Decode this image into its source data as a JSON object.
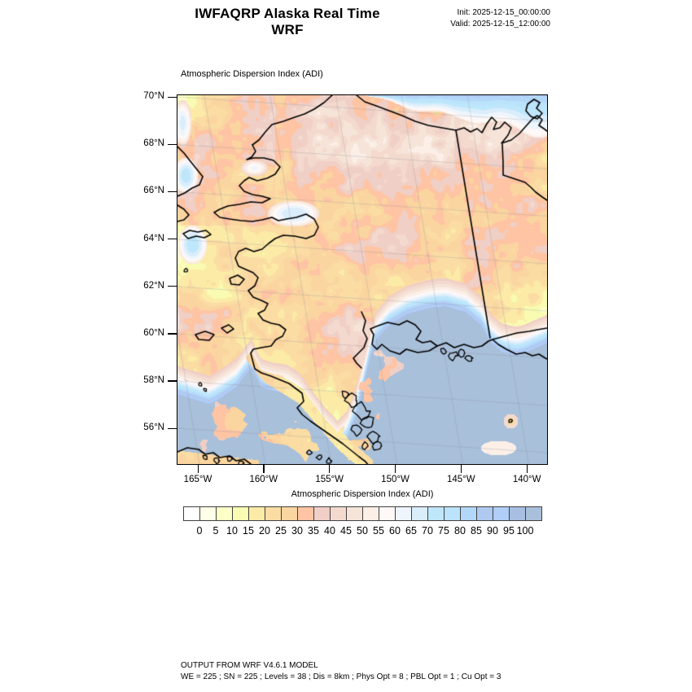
{
  "header": {
    "title": "IWFAQRP Alaska Real Time WRF",
    "init_label": "Init: 2025-12-15_00:00:00",
    "valid_label": "Valid: 2025-12-15_12:00:00"
  },
  "map": {
    "field_title": "Atmospheric Dispersion Index   (ADI)",
    "lat_tick_labels": [
      "70°N",
      "68°N",
      "66°N",
      "64°N",
      "62°N",
      "60°N",
      "58°N",
      "56°N"
    ],
    "lon_tick_labels": [
      "165°W",
      "160°W",
      "155°W",
      "150°W",
      "145°W",
      "140°W"
    ]
  },
  "colorbar": {
    "label": "Atmospheric Dispersion Index  (ADI)",
    "tick_values": [
      "0",
      "5",
      "10",
      "15",
      "20",
      "25",
      "30",
      "35",
      "40",
      "45",
      "50",
      "55",
      "60",
      "65",
      "70",
      "75",
      "80",
      "85",
      "90",
      "95",
      "100"
    ],
    "colors": [
      "#FFFFFF",
      "#FEFFE6",
      "#FDFFC8",
      "#F8FBB1",
      "#FCEBA7",
      "#FBDDA4",
      "#FBD5A0",
      "#FEC4A3",
      "#F0CFC6",
      "#F4DACE",
      "#F7E4D8",
      "#FBEFE8",
      "#FEF8F7",
      "#EFF5FD",
      "#DAEDFB",
      "#BFE7FB",
      "#BBE3FB",
      "#B3D7F9",
      "#AFC9F1",
      "#B0CEF8",
      "#A9BFE2",
      "#A9C0DA"
    ]
  },
  "footer": {
    "line1": "OUTPUT FROM WRF V4.6.1 MODEL",
    "line2": "WE = 225 ; SN = 225 ; Levels = 38 ; Dis = 8km ; Phys Opt = 8 ; PBL Opt = 1 ; Cu Opt = 3"
  },
  "chart_data": {
    "type": "heatmap",
    "title": "Atmospheric Dispersion Index (ADI)",
    "model_run": {
      "init": "2025-12-15_00:00:00",
      "valid": "2025-12-15_12:00:00"
    },
    "region": "Alaska",
    "projection_extent": {
      "lat_ticks_deg_n": [
        70,
        68,
        66,
        64,
        62,
        60,
        58,
        56
      ],
      "lon_ticks_deg_w": [
        165,
        160,
        155,
        150,
        145,
        140
      ]
    },
    "levels": [
      0,
      5,
      10,
      15,
      20,
      25,
      30,
      35,
      40,
      45,
      50,
      55,
      60,
      65,
      70,
      75,
      80,
      85,
      90,
      95,
      100
    ],
    "legend_position": "bottom",
    "value_summary": "Low ADI (0-40, white/yellow/orange/salmon) over interior and northern Alaska land; mid values (40-70, pink to pale blue) along coastal fringes and arctic coast; high ADI (85-100+, blue/gray-blue) over Gulf of Alaska, Bering Sea and south-central coastal waters",
    "grid_info": "WE = 225 ; SN = 225 ; Levels = 38 ; Dis = 8km ; Phys Opt = 8 ; PBL Opt = 1 ; Cu Opt = 3"
  }
}
